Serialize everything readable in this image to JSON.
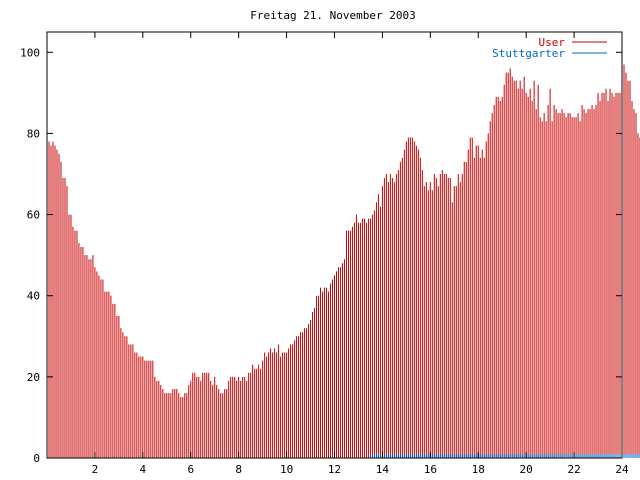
{
  "chart_data": {
    "type": "bar",
    "title": "Freitag 21. November 2003",
    "xlabel": "",
    "ylabel": "",
    "xlim": [
      0,
      24
    ],
    "ylim": [
      0,
      105
    ],
    "xticks": [
      "2",
      "4",
      "6",
      "8",
      "10",
      "12",
      "14",
      "16",
      "18",
      "20",
      "22",
      "24"
    ],
    "yticks": [
      "0",
      "20",
      "40",
      "60",
      "80",
      "100"
    ],
    "grid": false,
    "legend_position": "top-right",
    "interval_minutes": 5,
    "series": [
      {
        "name": "User",
        "color": "#cc0000",
        "values": [
          78,
          78,
          77,
          78,
          77,
          76,
          75,
          73,
          69,
          69,
          67,
          60,
          60,
          57,
          56,
          56,
          53,
          52,
          52,
          50,
          50,
          49,
          49,
          50,
          47,
          46,
          45,
          44,
          44,
          41,
          41,
          41,
          40,
          38,
          38,
          35,
          35,
          32,
          31,
          30,
          30,
          28,
          28,
          28,
          26,
          26,
          25,
          25,
          25,
          24,
          24,
          24,
          24,
          24,
          20,
          19,
          19,
          18,
          17,
          16,
          16,
          16,
          16,
          17,
          17,
          17,
          16,
          15,
          15,
          16,
          16,
          18,
          19,
          21,
          21,
          20,
          20,
          19,
          21,
          21,
          21,
          21,
          19,
          18,
          20,
          18,
          17,
          16,
          16,
          17,
          17,
          19,
          20,
          20,
          20,
          19,
          20,
          19,
          20,
          20,
          19,
          21,
          21,
          23,
          22,
          22,
          23,
          22,
          24,
          26,
          25,
          26,
          27,
          26,
          27,
          26,
          28,
          25,
          26,
          26,
          26,
          27,
          28,
          28,
          29,
          30,
          30,
          31,
          31,
          32,
          32,
          33,
          34,
          36,
          37,
          40,
          40,
          42,
          41,
          42,
          42,
          41,
          43,
          44,
          45,
          46,
          47,
          47,
          48,
          49,
          56,
          56,
          56,
          57,
          58,
          60,
          58,
          58,
          59,
          59,
          58,
          59,
          59,
          60,
          61,
          63,
          65,
          62,
          67,
          69,
          70,
          68,
          70,
          69,
          68,
          70,
          71,
          73,
          74,
          76,
          78,
          79,
          79,
          79,
          78,
          77,
          76,
          74,
          71,
          67,
          68,
          66,
          68,
          66,
          70,
          69,
          67,
          70,
          71,
          70,
          70,
          69,
          69,
          63,
          67,
          67,
          70,
          68,
          70,
          73,
          73,
          76,
          79,
          79,
          74,
          77,
          77,
          74,
          76,
          74,
          78,
          80,
          83,
          85,
          87,
          89,
          89,
          88,
          89,
          92,
          95,
          95,
          96,
          94,
          93,
          93,
          91,
          93,
          91,
          94,
          90,
          89,
          91,
          88,
          93,
          86,
          92,
          84,
          83,
          85,
          83,
          87,
          91,
          83,
          87,
          86,
          85,
          85,
          86,
          85,
          84,
          85,
          85,
          84,
          84,
          84,
          85,
          83,
          87,
          86,
          85,
          86,
          86,
          87,
          86,
          87,
          90,
          88,
          90,
          90,
          91,
          88,
          91,
          90,
          89,
          90,
          90,
          90,
          96,
          97,
          95,
          93,
          93,
          88,
          86,
          85,
          80,
          79,
          78,
          77,
          76,
          75,
          74,
          73,
          74
        ]
      },
      {
        "name": "Stuttgarter",
        "color": "#0066cc",
        "values": [
          0,
          0,
          0,
          0,
          0,
          0,
          0,
          0,
          0,
          0,
          0,
          0,
          0,
          0,
          0,
          0,
          0,
          0,
          0,
          0,
          0,
          0,
          0,
          0,
          0,
          0,
          0,
          0,
          0,
          0,
          0,
          0,
          0,
          0,
          0,
          0,
          0,
          0,
          0,
          0,
          0,
          0,
          0,
          0,
          0,
          0,
          0,
          0,
          0,
          0,
          0,
          0,
          0,
          0,
          0,
          0,
          0,
          0,
          0,
          0,
          0,
          0,
          0,
          0,
          0,
          0,
          0,
          0,
          0,
          0,
          0,
          0,
          0,
          0,
          0,
          0,
          0,
          0,
          0,
          0,
          0,
          0,
          0,
          0,
          0,
          0,
          0,
          0,
          0,
          0,
          0,
          0,
          0,
          0,
          0,
          0,
          0,
          0,
          0,
          0,
          0,
          0,
          0,
          0,
          0,
          0,
          0,
          0,
          0,
          0,
          0,
          0,
          0,
          0,
          0,
          0,
          0,
          0,
          0,
          0,
          0,
          0,
          0,
          0,
          0,
          0,
          0,
          0,
          0,
          0,
          0,
          0,
          0,
          0,
          0,
          0,
          0,
          0,
          0,
          0,
          0,
          0,
          0,
          0,
          0,
          0,
          0,
          0,
          0,
          0,
          0,
          0,
          0,
          0,
          0,
          0,
          0,
          0,
          0,
          0,
          0,
          0,
          1,
          1,
          1,
          1,
          1,
          1,
          1,
          1,
          1,
          1,
          1,
          1,
          1,
          1,
          1,
          1,
          1,
          1,
          1,
          1,
          1,
          1,
          1,
          1,
          1,
          1,
          1,
          1,
          1,
          1,
          1,
          1,
          1,
          1,
          1,
          1,
          1,
          1,
          1,
          1,
          1,
          1,
          1,
          1,
          1,
          1,
          1,
          1,
          1,
          1,
          1,
          1,
          1,
          1,
          1,
          1,
          1,
          1,
          1,
          1,
          1,
          1,
          1,
          1,
          1,
          1,
          1,
          1,
          1,
          1,
          1,
          1,
          1,
          1,
          1,
          1,
          1,
          1,
          1,
          1,
          1,
          1,
          1,
          1,
          1,
          1,
          1,
          1,
          1,
          1,
          1,
          1,
          1,
          1,
          1,
          1,
          1,
          1,
          1,
          1,
          1,
          1,
          1,
          1,
          1,
          1,
          1,
          1,
          1,
          1,
          1,
          1,
          1,
          1,
          1,
          1,
          1,
          1,
          1,
          1,
          1,
          1,
          1,
          1,
          1,
          1,
          1,
          1,
          1,
          1,
          1,
          1,
          1,
          1,
          1,
          1,
          1,
          1,
          1,
          1,
          1,
          1,
          1,
          1,
          1,
          1,
          1,
          1,
          1,
          1,
          1,
          1,
          1,
          1,
          1,
          1,
          1,
          1,
          1
        ]
      }
    ]
  }
}
